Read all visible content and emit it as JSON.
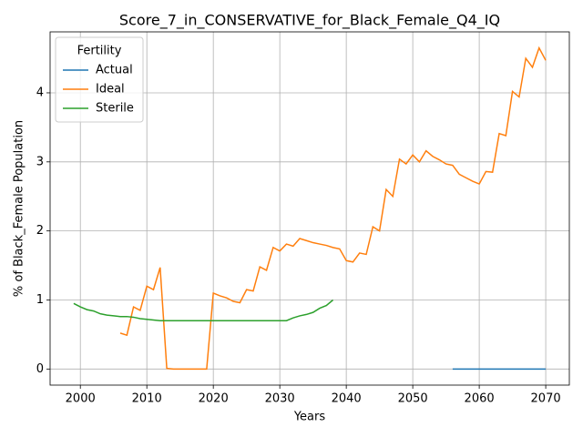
{
  "chart_data": {
    "type": "line",
    "title": "Score_7_in_CONSERVATIVE_for_Black_Female_Q4_IQ",
    "x_label": "Years",
    "y_label": "% of Black_Female Population",
    "legend_title": "Fertility",
    "legend": "upper left",
    "grid": true,
    "xlim": [
      1995.45,
      2073.55
    ],
    "ylim": [
      -0.233,
      4.883
    ],
    "xticks": [
      2000,
      2010,
      2020,
      2030,
      2040,
      2050,
      2060,
      2070
    ],
    "yticks": [
      0,
      1,
      2,
      3,
      4
    ],
    "x": [
      1999,
      2000,
      2001,
      2002,
      2003,
      2004,
      2005,
      2006,
      2007,
      2008,
      2009,
      2010,
      2011,
      2012,
      2013,
      2014,
      2015,
      2016,
      2017,
      2018,
      2019,
      2020,
      2021,
      2022,
      2023,
      2024,
      2025,
      2026,
      2027,
      2028,
      2029,
      2030,
      2031,
      2032,
      2033,
      2034,
      2035,
      2036,
      2037,
      2038,
      2039,
      2040,
      2041,
      2042,
      2043,
      2044,
      2045,
      2046,
      2047,
      2048,
      2049,
      2050,
      2051,
      2052,
      2053,
      2054,
      2055,
      2056,
      2057,
      2058,
      2059,
      2060,
      2061,
      2062,
      2063,
      2064,
      2065,
      2066,
      2067,
      2068,
      2069,
      2070
    ],
    "series": [
      {
        "name": "Actual",
        "color": "#1f77b4",
        "values": [
          null,
          null,
          null,
          null,
          null,
          null,
          null,
          null,
          null,
          null,
          null,
          null,
          null,
          null,
          null,
          null,
          null,
          null,
          null,
          null,
          null,
          null,
          null,
          null,
          null,
          null,
          null,
          null,
          null,
          null,
          null,
          null,
          null,
          null,
          null,
          null,
          null,
          null,
          null,
          null,
          null,
          null,
          null,
          null,
          null,
          null,
          null,
          null,
          null,
          null,
          null,
          null,
          null,
          null,
          null,
          null,
          null,
          0,
          0,
          0,
          0,
          0,
          0,
          0,
          0,
          0,
          0,
          0,
          0,
          0,
          0,
          0
        ]
      },
      {
        "name": "Ideal",
        "color": "#ff7f0e",
        "values": [
          null,
          null,
          null,
          null,
          null,
          null,
          null,
          0.52,
          0.49,
          0.9,
          0.85,
          1.2,
          1.15,
          1.47,
          0.01,
          0,
          0,
          0,
          0,
          0,
          0,
          1.1,
          1.06,
          1.03,
          0.98,
          0.96,
          1.15,
          1.13,
          1.48,
          1.43,
          1.76,
          1.71,
          1.81,
          1.78,
          1.89,
          1.86,
          1.83,
          1.81,
          1.79,
          1.76,
          1.74,
          1.57,
          1.55,
          1.68,
          1.66,
          2.06,
          2.0,
          2.6,
          2.5,
          3.04,
          2.97,
          3.1,
          3.0,
          3.16,
          3.08,
          3.03,
          2.97,
          2.95,
          2.82,
          2.77,
          2.72,
          2.68,
          2.86,
          2.85,
          3.41,
          3.38,
          4.02,
          3.94,
          4.5,
          4.37,
          4.65,
          4.47
        ]
      },
      {
        "name": "Sterile",
        "color": "#2ca02c",
        "values": [
          0.95,
          0.9,
          0.86,
          0.84,
          0.8,
          0.78,
          0.77,
          0.76,
          0.76,
          0.75,
          0.73,
          0.72,
          0.71,
          0.7,
          0.7,
          0.7,
          0.7,
          0.7,
          0.7,
          0.7,
          0.7,
          0.7,
          0.7,
          0.7,
          0.7,
          0.7,
          0.7,
          0.7,
          0.7,
          0.7,
          0.7,
          0.7,
          0.7,
          0.74,
          0.77,
          0.79,
          0.82,
          0.88,
          0.92,
          1.0,
          null,
          null,
          null,
          null,
          null,
          null,
          null,
          null,
          null,
          null,
          null,
          null,
          null,
          null,
          null,
          null,
          null,
          null,
          null,
          null,
          null,
          null,
          null,
          null,
          null,
          null,
          null,
          null,
          null,
          null,
          null,
          null
        ]
      }
    ]
  }
}
